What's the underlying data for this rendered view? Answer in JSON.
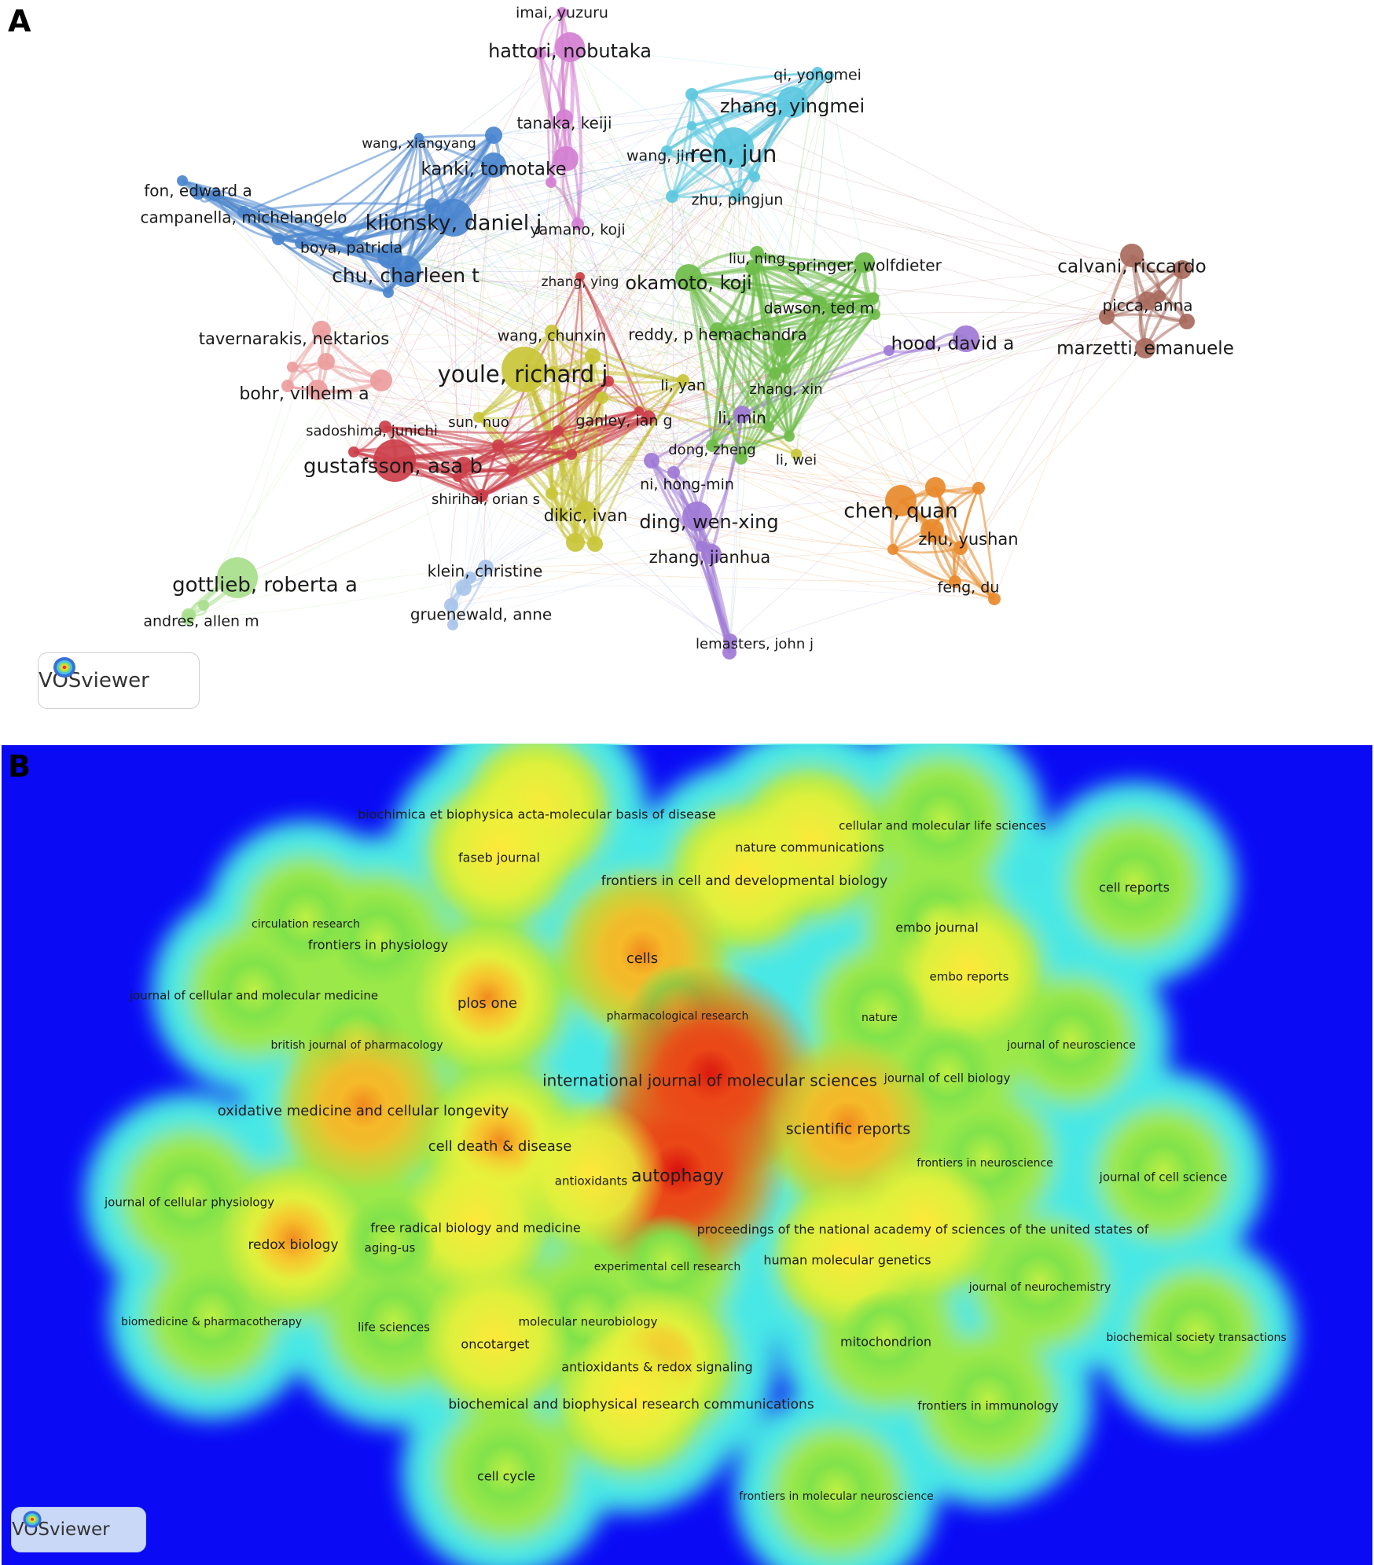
{
  "panelA": {
    "letter": "A",
    "badge": "VOSviewer",
    "clusters": {
      "blue": "#4a86cf",
      "pink": "#d47fd3",
      "cyan": "#5cc8e0",
      "green": "#6fbd4a",
      "brown": "#a86a5c",
      "purple": "#9f7ad6",
      "yellow": "#c9c538",
      "red": "#cc3f4a",
      "salmon": "#ec9d9d",
      "orange": "#e88a2c",
      "lightgreen": "#a8de8c",
      "lightblue": "#a9c4ea"
    },
    "authors": [
      {
        "label": "imai, yuzuru",
        "cluster": "pink"
      },
      {
        "label": "hattori, nobutaka",
        "cluster": "pink"
      },
      {
        "label": "qi, yongmei",
        "cluster": "cyan"
      },
      {
        "label": "zhang, yingmei",
        "cluster": "cyan"
      },
      {
        "label": "tanaka, keiji",
        "cluster": "pink"
      },
      {
        "label": "wang, xiangyang",
        "cluster": "blue"
      },
      {
        "label": "kanki, tomotake",
        "cluster": "blue"
      },
      {
        "label": "wang, jin",
        "cluster": "cyan"
      },
      {
        "label": "ren, jun",
        "cluster": "cyan"
      },
      {
        "label": "fon, edward a",
        "cluster": "blue"
      },
      {
        "label": "zhu, pingjun",
        "cluster": "cyan"
      },
      {
        "label": "campanella, michelangelo",
        "cluster": "blue"
      },
      {
        "label": "klionsky, daniel j",
        "cluster": "blue"
      },
      {
        "label": "yamano, koji",
        "cluster": "pink"
      },
      {
        "label": "boya, patricia",
        "cluster": "blue"
      },
      {
        "label": "liu, ning",
        "cluster": "green"
      },
      {
        "label": "springer, wolfdieter",
        "cluster": "green"
      },
      {
        "label": "calvani, riccardo",
        "cluster": "brown"
      },
      {
        "label": "chu, charleen t",
        "cluster": "blue"
      },
      {
        "label": "zhang, ying",
        "cluster": "red"
      },
      {
        "label": "okamoto, koji",
        "cluster": "green"
      },
      {
        "label": "picca, anna",
        "cluster": "brown"
      },
      {
        "label": "dawson, ted m",
        "cluster": "green"
      },
      {
        "label": "tavernarakis, nektarios",
        "cluster": "salmon"
      },
      {
        "label": "wang, chunxin",
        "cluster": "yellow"
      },
      {
        "label": "reddy, p hemachandra",
        "cluster": "green"
      },
      {
        "label": "hood, david a",
        "cluster": "purple"
      },
      {
        "label": "marzetti, emanuele",
        "cluster": "brown"
      },
      {
        "label": "youle, richard j",
        "cluster": "yellow"
      },
      {
        "label": "li, yan",
        "cluster": "yellow"
      },
      {
        "label": "zhang, xin",
        "cluster": "green"
      },
      {
        "label": "bohr, vilhelm a",
        "cluster": "salmon"
      },
      {
        "label": "sun, nuo",
        "cluster": "yellow"
      },
      {
        "label": "ganley, ian g",
        "cluster": "red"
      },
      {
        "label": "li, min",
        "cluster": "purple"
      },
      {
        "label": "sadoshima, junichi",
        "cluster": "red"
      },
      {
        "label": "dong, zheng",
        "cluster": "green"
      },
      {
        "label": "gustafsson, asa b",
        "cluster": "red"
      },
      {
        "label": "li, wei",
        "cluster": "yellow"
      },
      {
        "label": "ni, hong-min",
        "cluster": "purple"
      },
      {
        "label": "shirihai, orian s",
        "cluster": "red"
      },
      {
        "label": "chen, quan",
        "cluster": "orange"
      },
      {
        "label": "dikic, ivan",
        "cluster": "yellow"
      },
      {
        "label": "ding, wen-xing",
        "cluster": "purple"
      },
      {
        "label": "zhu, yushan",
        "cluster": "orange"
      },
      {
        "label": "zhang, jianhua",
        "cluster": "purple"
      },
      {
        "label": "klein, christine",
        "cluster": "lightblue"
      },
      {
        "label": "gottlieb, roberta a",
        "cluster": "lightgreen"
      },
      {
        "label": "feng, du",
        "cluster": "orange"
      },
      {
        "label": "andres, allen m",
        "cluster": "lightgreen"
      },
      {
        "label": "gruenewald, anne",
        "cluster": "lightblue"
      },
      {
        "label": "lemasters, john j",
        "cluster": "purple"
      }
    ]
  },
  "panelB": {
    "letter": "B",
    "badge": "VOSviewer",
    "journals": [
      {
        "label": "biochimica et biophysica acta-molecular basis of disease",
        "level": 0.6
      },
      {
        "label": "cellular and molecular life sciences",
        "level": 0.45
      },
      {
        "label": "nature communications",
        "level": 0.7
      },
      {
        "label": "faseb journal",
        "level": 0.6
      },
      {
        "label": "frontiers in cell and developmental biology",
        "level": 0.65
      },
      {
        "label": "cell reports",
        "level": 0.45
      },
      {
        "label": "circulation research",
        "level": 0.4
      },
      {
        "label": "embo journal",
        "level": 0.55
      },
      {
        "label": "frontiers in physiology",
        "level": 0.5
      },
      {
        "label": "cells",
        "level": 0.8
      },
      {
        "label": "embo reports",
        "level": 0.65
      },
      {
        "label": "journal of cellular and molecular medicine",
        "level": 0.45
      },
      {
        "label": "plos one",
        "level": 0.75
      },
      {
        "label": "pharmacological research",
        "level": 0.5
      },
      {
        "label": "nature",
        "level": 0.45
      },
      {
        "label": "british journal of pharmacology",
        "level": 0.45
      },
      {
        "label": "journal of neuroscience",
        "level": 0.4
      },
      {
        "label": "international journal of molecular sciences",
        "level": 0.95
      },
      {
        "label": "journal of cell biology",
        "level": 0.5
      },
      {
        "label": "oxidative medicine and cellular longevity",
        "level": 0.8
      },
      {
        "label": "scientific reports",
        "level": 0.85
      },
      {
        "label": "cell death & disease",
        "level": 0.75
      },
      {
        "label": "frontiers in neuroscience",
        "level": 0.5
      },
      {
        "label": "autophagy",
        "level": 1.0
      },
      {
        "label": "antioxidants",
        "level": 0.6
      },
      {
        "label": "journal of cell science",
        "level": 0.45
      },
      {
        "label": "journal of cellular physiology",
        "level": 0.5
      },
      {
        "label": "free radical biology and medicine",
        "level": 0.6
      },
      {
        "label": "proceedings of the national academy of sciences of the united states of",
        "level": 0.6
      },
      {
        "label": "redox biology",
        "level": 0.75
      },
      {
        "label": "aging-us",
        "level": 0.5
      },
      {
        "label": "human molecular genetics",
        "level": 0.6
      },
      {
        "label": "experimental cell research",
        "level": 0.5
      },
      {
        "label": "journal of neurochemistry",
        "level": 0.45
      },
      {
        "label": "biomedicine & pharmacotherapy",
        "level": 0.45
      },
      {
        "label": "life sciences",
        "level": 0.5
      },
      {
        "label": "molecular neurobiology",
        "level": 0.55
      },
      {
        "label": "biochemical society transactions",
        "level": 0.4
      },
      {
        "label": "oncotarget",
        "level": 0.6
      },
      {
        "label": "mitochondrion",
        "level": 0.55
      },
      {
        "label": "antioxidants & redox signaling",
        "level": 0.75
      },
      {
        "label": "biochemical and biophysical research communications",
        "level": 0.65
      },
      {
        "label": "frontiers in immunology",
        "level": 0.5
      },
      {
        "label": "cell cycle",
        "level": 0.5
      },
      {
        "label": "frontiers in molecular neuroscience",
        "level": 0.45
      }
    ]
  }
}
